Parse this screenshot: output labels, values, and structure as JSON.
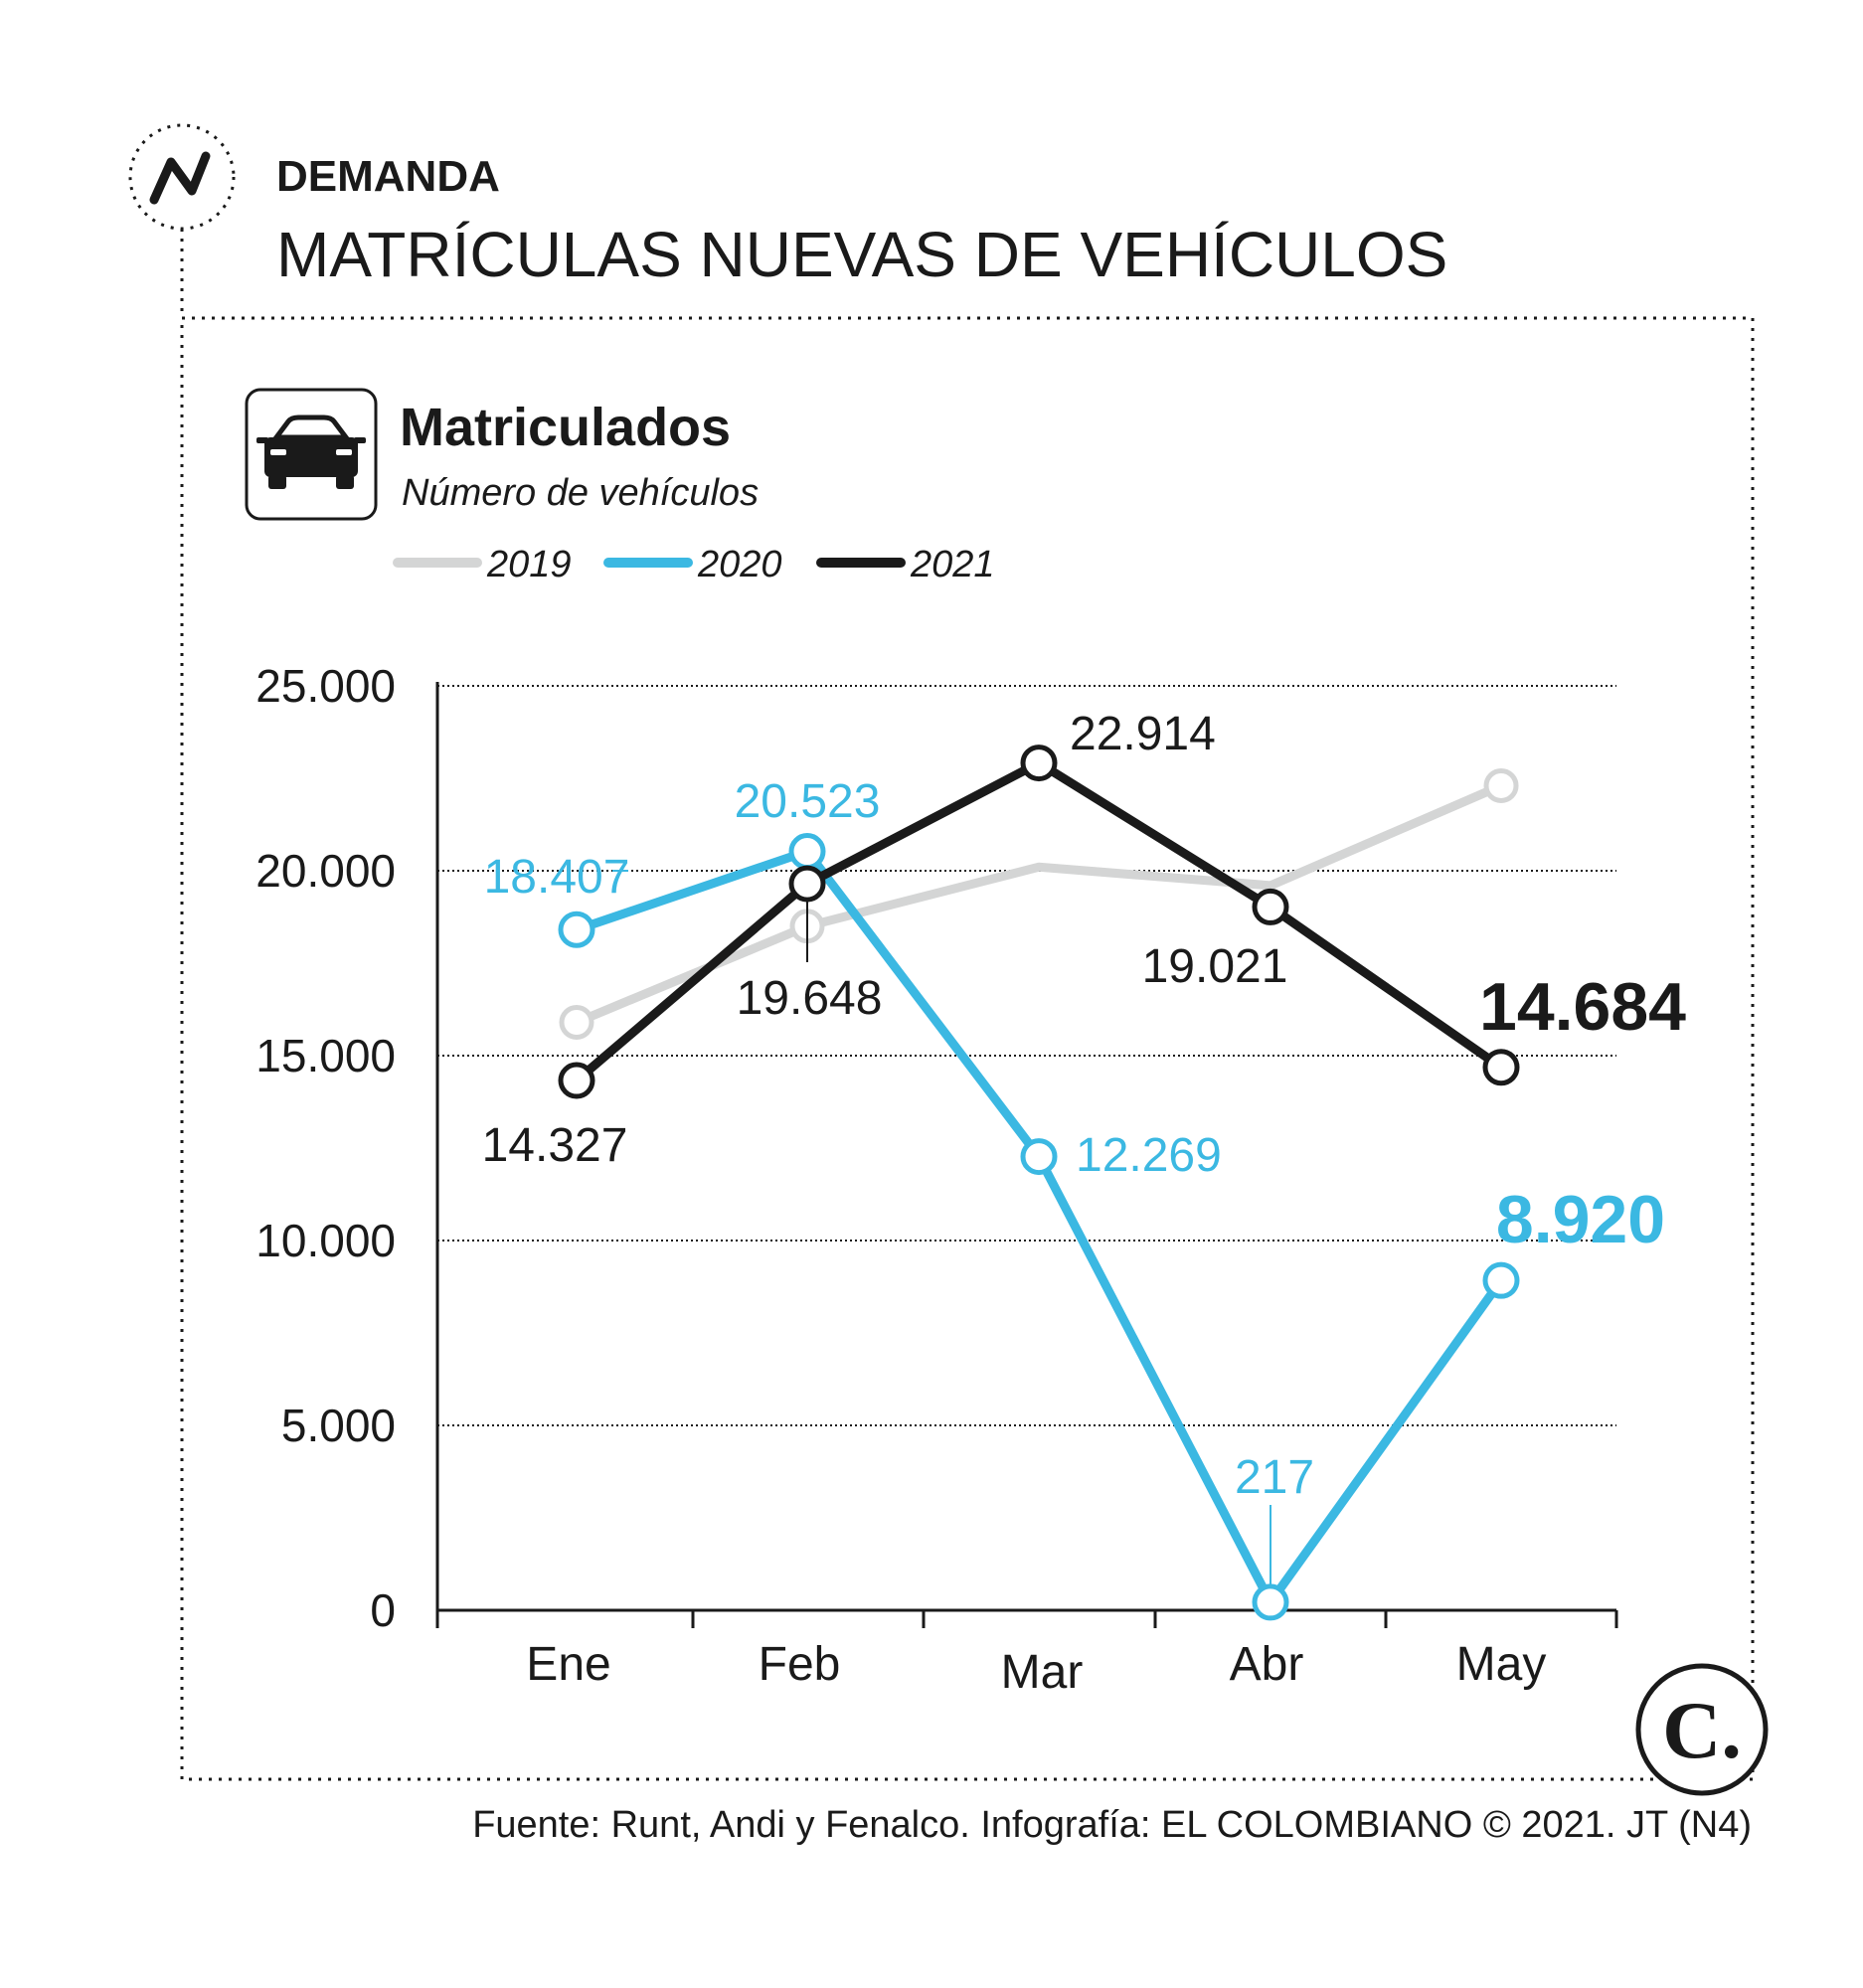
{
  "header": {
    "section": "DEMANDA",
    "title": "MATRÍCULAS NUEVAS DE VEHÍCULOS",
    "icon": "trend-line-icon"
  },
  "panel": {
    "title": "Matriculados",
    "subtitle": "Número de vehículos",
    "icon": "car-icon"
  },
  "legend": [
    "2019",
    "2020",
    "2021"
  ],
  "colors": {
    "2019": "#d4d5d5",
    "2020": "#3bb8e2",
    "2021": "#1a1a1a"
  },
  "chart_data": {
    "type": "line",
    "categories": [
      "Ene",
      "Feb",
      "Mar",
      "Abr",
      "May"
    ],
    "ylim": [
      0,
      25000
    ],
    "yticks": [
      "0",
      "5.000",
      "10.000",
      "15.000",
      "20.000",
      "25.000"
    ],
    "grid": true,
    "legend_position": "top-left",
    "series": [
      {
        "name": "2019",
        "values": [
          15900,
          18500,
          20100,
          19600,
          22300
        ],
        "labels": []
      },
      {
        "name": "2020",
        "values": [
          18407,
          20523,
          12269,
          217,
          8920
        ],
        "labels": [
          "18.407",
          "20.523",
          "12.269",
          "217",
          "8.920"
        ]
      },
      {
        "name": "2021",
        "values": [
          14327,
          19648,
          22914,
          19021,
          14684
        ],
        "labels": [
          "14.327",
          "19.648",
          "22.914",
          "19.021",
          "14.684"
        ]
      }
    ]
  },
  "footer": {
    "source": "Fuente: Runt, Andi y Fenalco. Infografía: EL COLOMBIANO © 2021. JT (N4)",
    "logo": "C."
  }
}
